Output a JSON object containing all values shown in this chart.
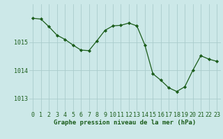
{
  "x": [
    0,
    1,
    2,
    3,
    4,
    5,
    6,
    7,
    8,
    9,
    10,
    11,
    12,
    13,
    14,
    15,
    16,
    17,
    18,
    19,
    20,
    21,
    22,
    23
  ],
  "y": [
    1015.85,
    1015.82,
    1015.55,
    1015.25,
    1015.1,
    1014.9,
    1014.72,
    1014.7,
    1015.05,
    1015.42,
    1015.58,
    1015.6,
    1015.68,
    1015.58,
    1014.9,
    1013.88,
    1013.65,
    1013.38,
    1013.25,
    1013.42,
    1014.0,
    1014.52,
    1014.4,
    1014.32
  ],
  "line_color": "#1a5c1a",
  "marker_color": "#1a5c1a",
  "bg_color": "#cce8e8",
  "grid_color": "#aacccc",
  "xlabel": "Graphe pression niveau de la mer (hPa)",
  "xlabel_color": "#1a5c1a",
  "ylabel_ticks": [
    1013,
    1014,
    1015
  ],
  "ylim": [
    1012.55,
    1016.35
  ],
  "xlim": [
    -0.5,
    23.5
  ],
  "tick_color": "#1a5c1a",
  "label_fontsize": 6.0,
  "xlabel_fontsize": 6.5
}
